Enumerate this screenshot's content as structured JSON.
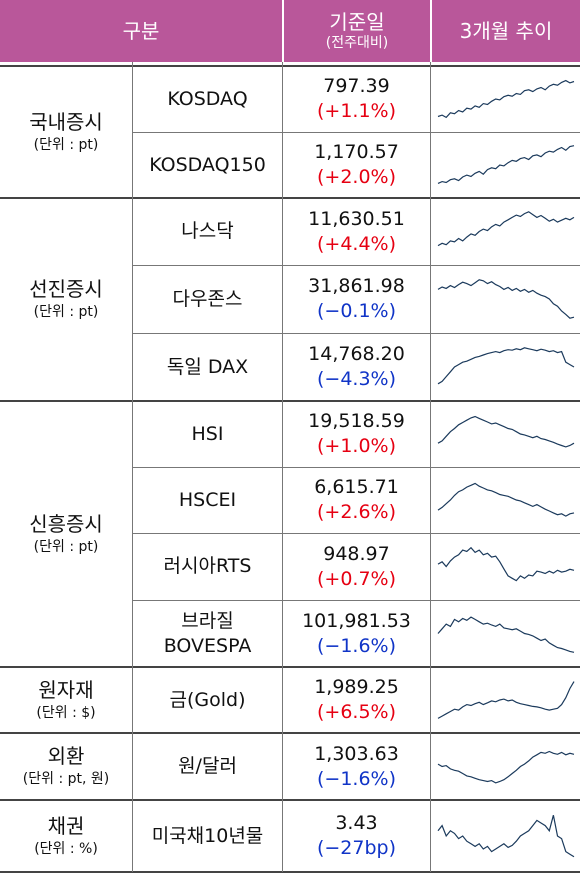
{
  "header": {
    "category_label": "구분",
    "base_date_label": "기준일",
    "base_date_sub": "(전주대비)",
    "trend_label": "3개월 추이"
  },
  "categories": [
    {
      "title": "국내증시",
      "unit": "(단위 : pt)"
    },
    {
      "title": "선진증시",
      "unit": "(단위 : pt)"
    },
    {
      "title": "신흥증시",
      "unit": "(단위 : pt)"
    },
    {
      "title": "원자재",
      "unit": "(단위 : $)"
    },
    {
      "title": "외환",
      "unit": "(단위 : pt, 원)"
    },
    {
      "title": "채권",
      "unit": "(단위 : %)"
    }
  ],
  "rows": [
    {
      "name": "KOSDAQ",
      "value": "797.39",
      "change": "(+1.1%)",
      "direction": "up",
      "trend": [
        0.12,
        0.15,
        0.1,
        0.2,
        0.18,
        0.25,
        0.22,
        0.3,
        0.28,
        0.35,
        0.32,
        0.4,
        0.38,
        0.45,
        0.5,
        0.48,
        0.55,
        0.58,
        0.56,
        0.62,
        0.6,
        0.68,
        0.7,
        0.66,
        0.72,
        0.75,
        0.7,
        0.78,
        0.82,
        0.8,
        0.86,
        0.9,
        0.85,
        0.88
      ]
    },
    {
      "name": "KOSDAQ150",
      "value": "1,170.57",
      "change": "(+2.0%)",
      "direction": "up",
      "trend": [
        0.1,
        0.14,
        0.12,
        0.18,
        0.2,
        0.16,
        0.24,
        0.28,
        0.25,
        0.32,
        0.36,
        0.3,
        0.4,
        0.44,
        0.42,
        0.5,
        0.48,
        0.55,
        0.6,
        0.58,
        0.64,
        0.66,
        0.62,
        0.7,
        0.72,
        0.68,
        0.76,
        0.8,
        0.78,
        0.84,
        0.88,
        0.82,
        0.9,
        0.92
      ]
    },
    {
      "name": "나스닥",
      "value": "11,630.51",
      "change": "(+4.4%)",
      "direction": "up",
      "trend": [
        0.2,
        0.25,
        0.22,
        0.3,
        0.28,
        0.35,
        0.3,
        0.38,
        0.45,
        0.42,
        0.5,
        0.55,
        0.52,
        0.6,
        0.65,
        0.62,
        0.7,
        0.75,
        0.8,
        0.85,
        0.82,
        0.88,
        0.92,
        0.86,
        0.8,
        0.84,
        0.78,
        0.72,
        0.76,
        0.7,
        0.74,
        0.78,
        0.75,
        0.8
      ]
    },
    {
      "name": "다우존스",
      "value": "31,861.98",
      "change": "(−0.1%)",
      "direction": "down",
      "trend": [
        0.7,
        0.75,
        0.72,
        0.78,
        0.74,
        0.8,
        0.85,
        0.82,
        0.78,
        0.84,
        0.9,
        0.88,
        0.82,
        0.86,
        0.8,
        0.76,
        0.7,
        0.74,
        0.68,
        0.72,
        0.66,
        0.7,
        0.64,
        0.68,
        0.62,
        0.58,
        0.55,
        0.5,
        0.4,
        0.35,
        0.25,
        0.18,
        0.1,
        0.12
      ]
    },
    {
      "name": "독일 DAX",
      "value": "14,768.20",
      "change": "(−4.3%)",
      "direction": "down",
      "trend": [
        0.15,
        0.2,
        0.3,
        0.4,
        0.5,
        0.55,
        0.6,
        0.62,
        0.66,
        0.7,
        0.72,
        0.75,
        0.78,
        0.8,
        0.82,
        0.8,
        0.84,
        0.86,
        0.85,
        0.88,
        0.86,
        0.9,
        0.88,
        0.86,
        0.84,
        0.87,
        0.85,
        0.82,
        0.84,
        0.8,
        0.82,
        0.6,
        0.55,
        0.5
      ]
    },
    {
      "name": "HSI",
      "value": "19,518.59",
      "change": "(+1.0%)",
      "direction": "up",
      "trend": [
        0.3,
        0.35,
        0.45,
        0.55,
        0.62,
        0.7,
        0.75,
        0.8,
        0.85,
        0.88,
        0.84,
        0.8,
        0.76,
        0.72,
        0.74,
        0.7,
        0.66,
        0.62,
        0.6,
        0.55,
        0.5,
        0.48,
        0.45,
        0.42,
        0.45,
        0.4,
        0.38,
        0.35,
        0.32,
        0.28,
        0.25,
        0.22,
        0.25,
        0.3
      ]
    },
    {
      "name": "HSCEI",
      "value": "6,615.71",
      "change": "(+2.6%)",
      "direction": "up",
      "trend": [
        0.28,
        0.34,
        0.42,
        0.5,
        0.6,
        0.68,
        0.72,
        0.78,
        0.82,
        0.86,
        0.8,
        0.76,
        0.72,
        0.7,
        0.66,
        0.62,
        0.6,
        0.58,
        0.54,
        0.5,
        0.48,
        0.44,
        0.4,
        0.36,
        0.4,
        0.35,
        0.3,
        0.26,
        0.22,
        0.18,
        0.2,
        0.15,
        0.2,
        0.22
      ]
    },
    {
      "name": "러시아RTS",
      "value": "948.97",
      "change": "(+0.7%)",
      "direction": "up",
      "trend": [
        0.55,
        0.6,
        0.5,
        0.62,
        0.7,
        0.75,
        0.85,
        0.82,
        0.9,
        0.8,
        0.85,
        0.75,
        0.78,
        0.7,
        0.72,
        0.6,
        0.45,
        0.3,
        0.25,
        0.2,
        0.3,
        0.25,
        0.32,
        0.3,
        0.4,
        0.38,
        0.35,
        0.4,
        0.36,
        0.42,
        0.38,
        0.4,
        0.44,
        0.42
      ]
    },
    {
      "name": "브라질\nBOVESPA",
      "value": "101,981.53",
      "change": "(−1.6%)",
      "direction": "down",
      "trend": [
        0.5,
        0.6,
        0.7,
        0.65,
        0.8,
        0.75,
        0.82,
        0.78,
        0.85,
        0.8,
        0.75,
        0.7,
        0.72,
        0.68,
        0.65,
        0.7,
        0.62,
        0.6,
        0.58,
        0.6,
        0.55,
        0.5,
        0.48,
        0.45,
        0.4,
        0.35,
        0.38,
        0.3,
        0.25,
        0.2,
        0.18,
        0.15,
        0.12,
        0.1
      ]
    },
    {
      "name": "금(Gold)",
      "value": "1,989.25",
      "change": "(+6.5%)",
      "direction": "up",
      "trend": [
        0.1,
        0.15,
        0.2,
        0.25,
        0.3,
        0.28,
        0.35,
        0.4,
        0.38,
        0.42,
        0.45,
        0.4,
        0.44,
        0.48,
        0.46,
        0.5,
        0.52,
        0.48,
        0.5,
        0.45,
        0.42,
        0.4,
        0.38,
        0.36,
        0.35,
        0.33,
        0.3,
        0.28,
        0.3,
        0.32,
        0.4,
        0.55,
        0.75,
        0.9
      ]
    },
    {
      "name": "원/달러",
      "value": "1,303.63",
      "change": "(−1.6%)",
      "direction": "down",
      "trend": [
        0.55,
        0.5,
        0.52,
        0.45,
        0.42,
        0.4,
        0.35,
        0.3,
        0.28,
        0.25,
        0.22,
        0.2,
        0.18,
        0.2,
        0.15,
        0.18,
        0.22,
        0.28,
        0.35,
        0.42,
        0.5,
        0.55,
        0.62,
        0.7,
        0.75,
        0.8,
        0.78,
        0.82,
        0.78,
        0.76,
        0.8,
        0.75,
        0.78,
        0.76
      ]
    },
    {
      "name": "미국채10년물",
      "value": "3.43",
      "change": "(−27bp)",
      "direction": "down",
      "trend": [
        0.6,
        0.7,
        0.5,
        0.6,
        0.55,
        0.45,
        0.5,
        0.4,
        0.35,
        0.3,
        0.35,
        0.25,
        0.3,
        0.2,
        0.25,
        0.3,
        0.35,
        0.28,
        0.32,
        0.4,
        0.5,
        0.55,
        0.6,
        0.7,
        0.8,
        0.75,
        0.7,
        0.6,
        0.9,
        0.5,
        0.45,
        0.2,
        0.15,
        0.1
      ]
    }
  ],
  "colors": {
    "header_bg": "#b9579a",
    "up": "#e60012",
    "down": "#1034c7",
    "spark": "#1b3a5c"
  }
}
